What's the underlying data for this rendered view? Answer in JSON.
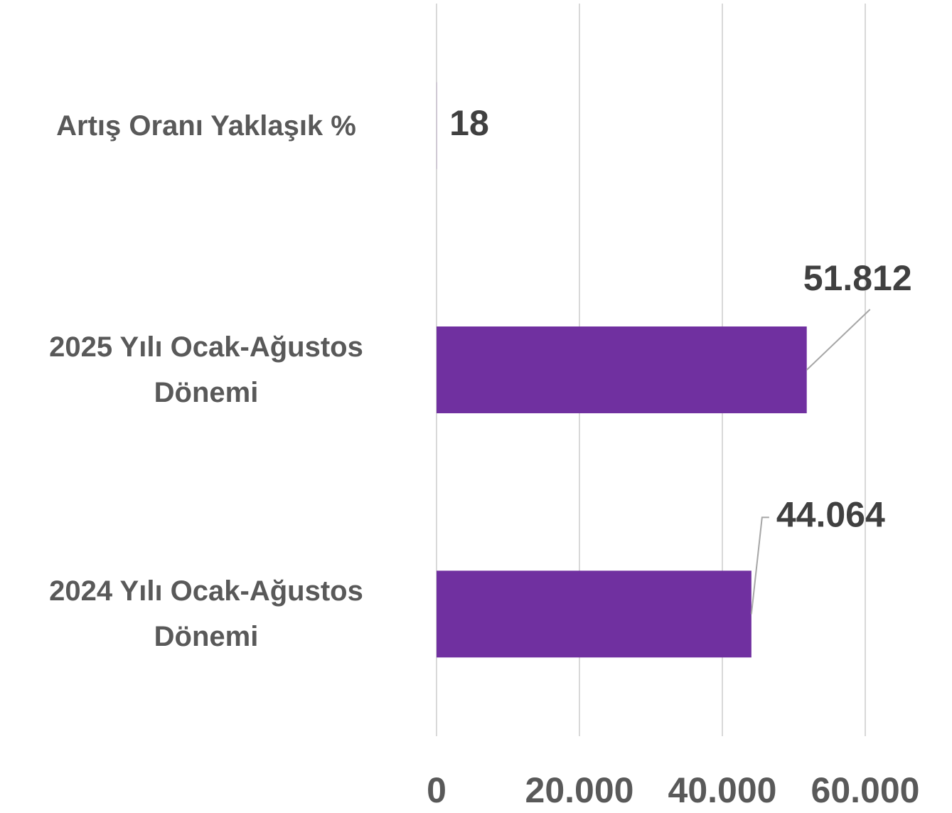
{
  "chart_data": {
    "type": "bar",
    "orientation": "horizontal",
    "categories": [
      "Artış Oranı Yaklaşık %",
      "2025 Yılı Ocak-Ağustos Dönemi",
      "2024 Yılı Ocak-Ağustos Dönemi"
    ],
    "values": [
      18,
      51812,
      44064
    ],
    "value_labels": [
      "18",
      "51.812",
      "44.064"
    ],
    "color": "#7030a0",
    "xlim": [
      0,
      60000
    ],
    "xticks": [
      0,
      {
        "value": 20000,
        "label": "20.000"
      },
      {
        "value": 40000,
        "label": "40.000"
      },
      {
        "value": 60000,
        "label": "60.000"
      }
    ],
    "grid": true
  }
}
